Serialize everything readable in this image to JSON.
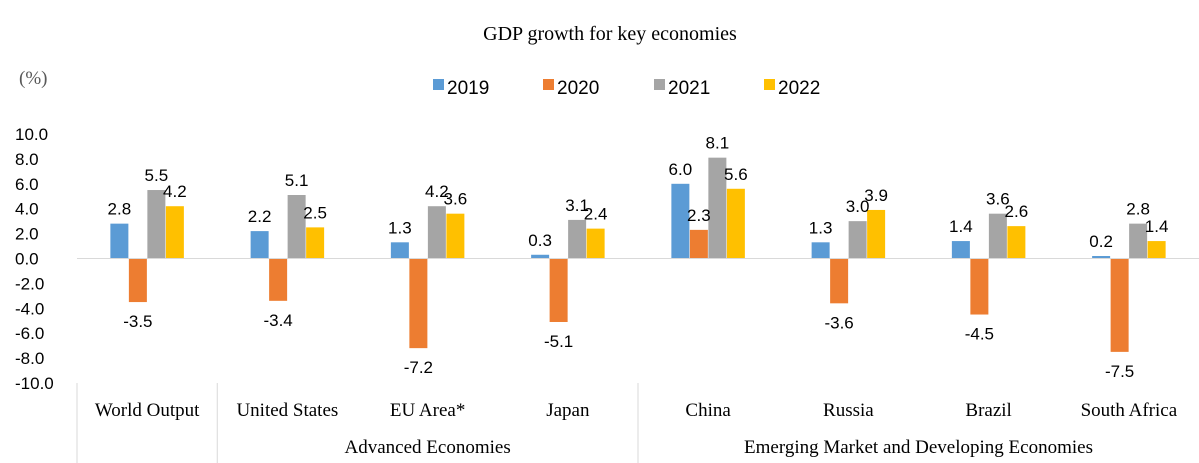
{
  "chart_data": {
    "type": "bar",
    "title": "GDP growth for key economies",
    "unit_label": "(%)",
    "ylim": [
      -10,
      10
    ],
    "yticks": [
      "10.0",
      "8.0",
      "6.0",
      "4.0",
      "2.0",
      "0.0",
      "-2.0",
      "-4.0",
      "-6.0",
      "-8.0",
      "-10.0"
    ],
    "legend_position": "top-center",
    "categories": [
      "World Output",
      "United States",
      "EU Area*",
      "Japan",
      "China",
      "Russia",
      "Brazil",
      "South Africa"
    ],
    "groups": [
      {
        "label": "",
        "members": [
          "World Output"
        ]
      },
      {
        "label": "Advanced Economies",
        "members": [
          "United States",
          "EU Area*",
          "Japan"
        ]
      },
      {
        "label": "Emerging Market and Developing Economies",
        "members": [
          "China",
          "Russia",
          "Brazil",
          "South Africa"
        ]
      }
    ],
    "series": [
      {
        "name": "2019",
        "color": "#5B9BD5",
        "values": [
          2.8,
          2.2,
          1.3,
          0.3,
          6.0,
          1.3,
          1.4,
          0.2
        ]
      },
      {
        "name": "2020",
        "color": "#ED7D31",
        "values": [
          -3.5,
          -3.4,
          -7.2,
          -5.1,
          2.3,
          -3.6,
          -4.5,
          -7.5
        ]
      },
      {
        "name": "2021",
        "color": "#A5A5A5",
        "values": [
          5.5,
          5.1,
          4.2,
          3.1,
          8.1,
          3.0,
          3.6,
          2.8
        ]
      },
      {
        "name": "2022",
        "color": "#FFC000",
        "values": [
          4.2,
          2.5,
          3.6,
          2.4,
          5.6,
          3.9,
          2.6,
          1.4
        ]
      }
    ]
  }
}
